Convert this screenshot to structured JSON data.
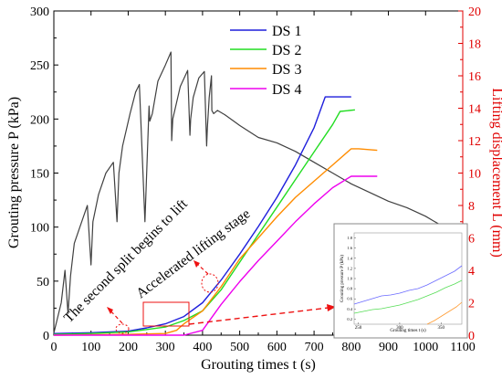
{
  "chart_data": {
    "type": "line",
    "xlabel": "Grouting times t (s)",
    "ylabel_left": "Grouting pressure P (kPa)",
    "ylabel_right": "Lifting displacement L (mm)",
    "xlim": [
      0,
      1100
    ],
    "ylim_left": [
      0,
      300
    ],
    "ylim_right": [
      0,
      20
    ],
    "x_ticks": [
      "0",
      "100",
      "200",
      "300",
      "400",
      "500",
      "600",
      "700",
      "800",
      "900",
      "1000",
      "1100"
    ],
    "y_left_ticks": [
      "0",
      "50",
      "100",
      "150",
      "200",
      "250",
      "300"
    ],
    "y_right_ticks": [
      "0",
      "2",
      "4",
      "6",
      "8",
      "10",
      "12",
      "14",
      "16",
      "18",
      "20"
    ],
    "grid": false,
    "legend_position": "top-center",
    "colors": {
      "pressure": "#404040",
      "DS 1": "#1f1fdc",
      "DS 2": "#22dd22",
      "DS 3": "#ff8c00",
      "DS 4": "#ee00ee",
      "annotation": "#ee1111"
    },
    "pressure_series": {
      "axis": "left",
      "x": [
        0,
        20,
        30,
        38,
        45,
        55,
        70,
        80,
        90,
        100,
        105,
        120,
        140,
        160,
        170,
        175,
        185,
        205,
        220,
        230,
        245,
        256,
        258,
        265,
        280,
        300,
        315,
        317,
        320,
        340,
        360,
        366,
        368,
        375,
        390,
        405,
        411,
        413,
        418,
        424,
        425,
        430,
        440,
        460,
        500,
        550,
        600,
        650,
        700,
        750,
        800,
        850,
        900,
        950,
        1000,
        1020,
        1040,
        1055,
        1058,
        1060
      ],
      "y": [
        2,
        30,
        60,
        20,
        55,
        85,
        100,
        110,
        120,
        65,
        105,
        130,
        150,
        160,
        105,
        150,
        175,
        205,
        225,
        232,
        105,
        212,
        198,
        205,
        235,
        250,
        262,
        180,
        200,
        230,
        245,
        185,
        200,
        220,
        238,
        244,
        175,
        192,
        220,
        240,
        208,
        205,
        208,
        204,
        194,
        183,
        178,
        170,
        160,
        150,
        140,
        132,
        124,
        118,
        110,
        106,
        102,
        95,
        82,
        80
      ]
    },
    "series": [
      {
        "name": "DS 1",
        "axis": "right",
        "x": [
          0,
          100,
          200,
          250,
          300,
          350,
          400,
          450,
          500,
          550,
          600,
          650,
          700,
          730,
          800
        ],
        "y": [
          0.1,
          0.15,
          0.25,
          0.45,
          0.7,
          1.15,
          2.0,
          3.4,
          5.0,
          6.7,
          8.5,
          10.5,
          12.8,
          14.7,
          14.7
        ]
      },
      {
        "name": "DS 2",
        "axis": "right",
        "x": [
          0,
          100,
          200,
          250,
          300,
          350,
          400,
          450,
          500,
          550,
          600,
          650,
          700,
          750,
          770,
          810
        ],
        "y": [
          0.05,
          0.1,
          0.2,
          0.35,
          0.5,
          0.9,
          1.5,
          2.8,
          4.5,
          6.2,
          7.9,
          9.6,
          11.3,
          13.0,
          13.8,
          13.9
        ]
      },
      {
        "name": "DS 3",
        "axis": "right",
        "x": [
          0,
          200,
          300,
          330,
          350,
          400,
          450,
          500,
          550,
          600,
          650,
          700,
          750,
          800,
          820,
          870
        ],
        "y": [
          0,
          0.05,
          0.1,
          0.3,
          0.7,
          1.5,
          3.0,
          4.7,
          6.0,
          7.3,
          8.5,
          9.5,
          10.5,
          11.5,
          11.5,
          11.4
        ]
      },
      {
        "name": "DS 4",
        "axis": "right",
        "x": [
          0,
          350,
          400,
          450,
          500,
          550,
          600,
          650,
          700,
          750,
          800,
          870
        ],
        "y": [
          0,
          0,
          0.3,
          1.9,
          3.3,
          4.6,
          5.8,
          7.0,
          8.1,
          9.1,
          9.8,
          9.8
        ]
      }
    ],
    "annotations": {
      "second_split": "The second split begins to lift",
      "accelerated": "Accelerated lifting stage"
    },
    "inset": {
      "xlabel": "Grouting times t (s)",
      "ylabel": "Grouting pressure P (kPa)",
      "x_ticks": [
        "250",
        "300",
        "350"
      ],
      "y_ticks": [
        "0.2",
        "0.4",
        "0.6",
        "0.8",
        "1.0",
        "1.2",
        "1.4",
        "1.6",
        "1.8"
      ]
    }
  }
}
